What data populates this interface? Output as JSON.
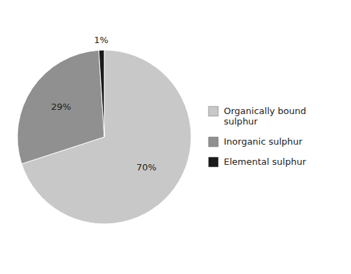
{
  "chart_data": {
    "type": "pie",
    "categories": [
      "Organically bound\nsulphur",
      "Inorganic sulphur",
      "Elemental sulphur"
    ],
    "values": [
      70,
      29,
      1
    ],
    "value_labels": [
      "70%",
      "29%",
      "1%"
    ],
    "colors": [
      "#c8c8c8",
      "#909090",
      "#1a1a1a"
    ],
    "data_labels": true,
    "legend": "right"
  }
}
